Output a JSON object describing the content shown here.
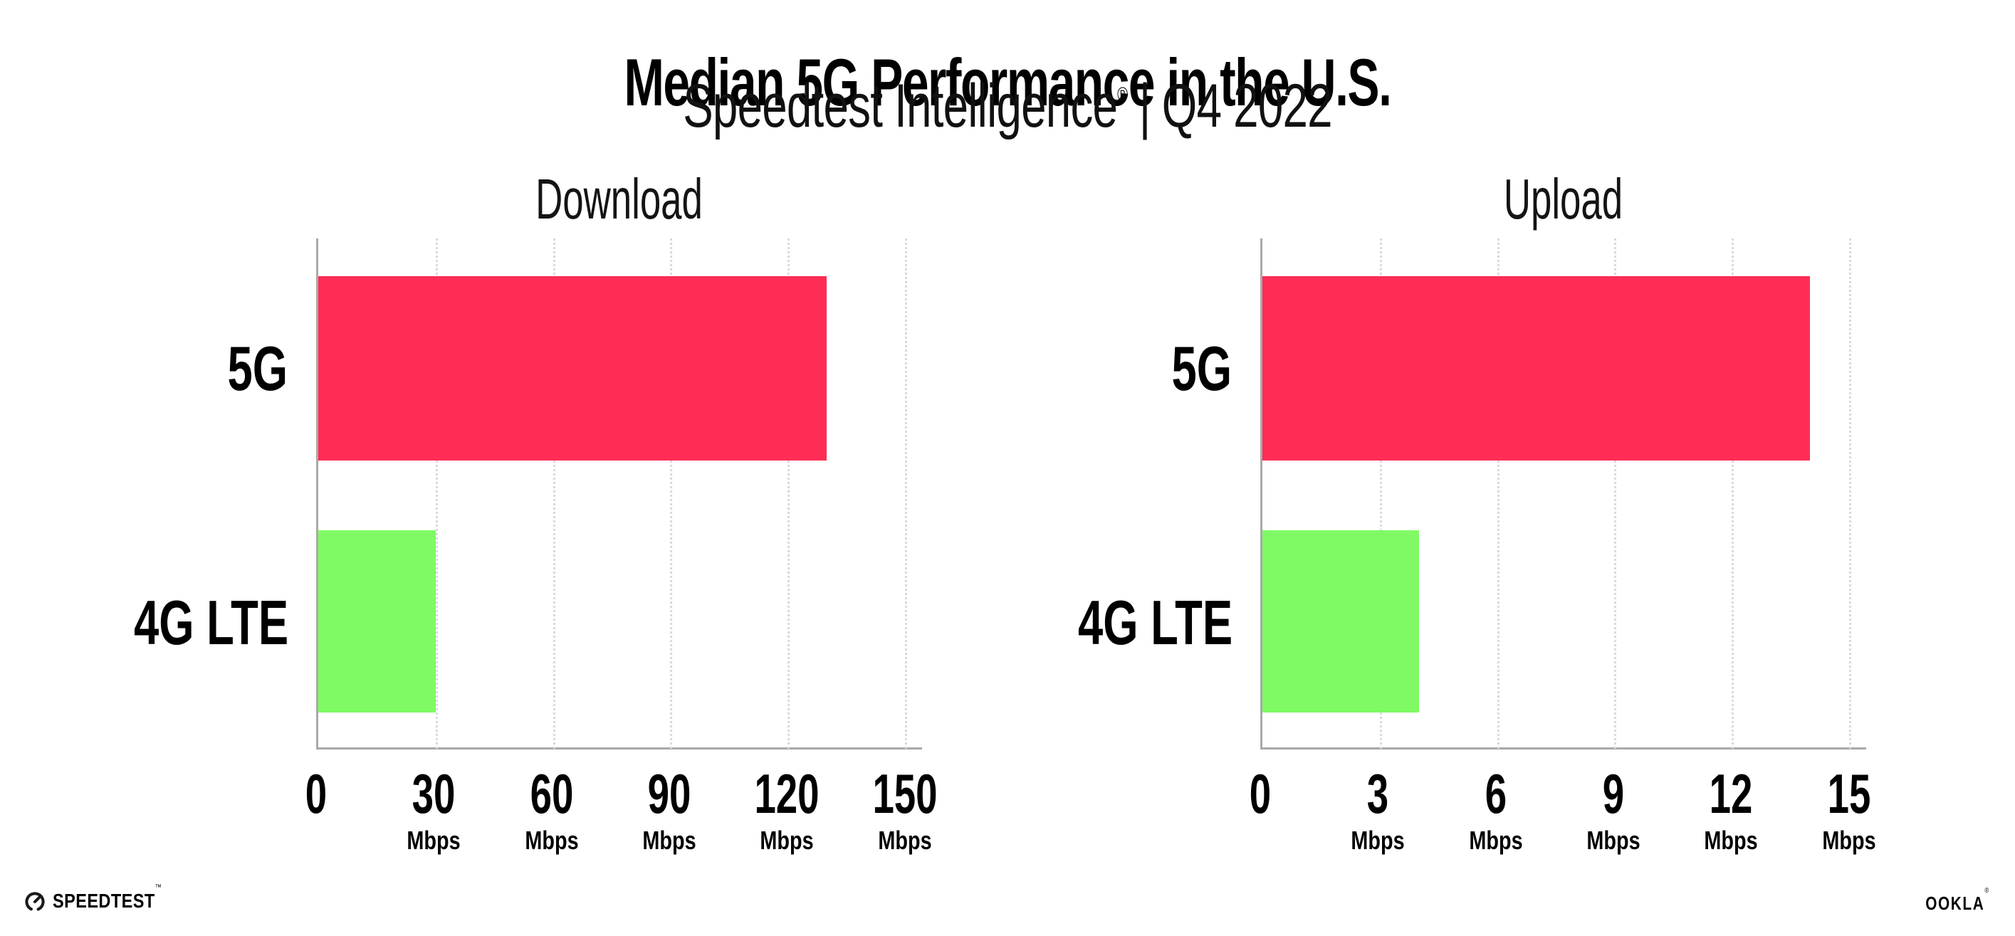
{
  "header": {
    "title": "Median 5G Performance in the U.S.",
    "subtitle": {
      "brand": "Speedtest Intelligence",
      "reg": "®",
      "separator": "|",
      "period": "Q4 2022"
    }
  },
  "colors": {
    "bar_5g": "#FF2D55",
    "bar_4g_lte": "#7FFA64",
    "axis": "#A9A9A9",
    "gridline": "#D9D9E2",
    "text": "#000000"
  },
  "chart_data": [
    {
      "type": "bar",
      "orientation": "horizontal",
      "title": "Download",
      "categories": [
        "5G",
        "4G LTE"
      ],
      "values": [
        130,
        30
      ],
      "unit": "Mbps",
      "xticks": [
        0,
        30,
        60,
        90,
        120,
        150
      ],
      "xlim": [
        0,
        154.4
      ],
      "xlabel": "",
      "ylabel": "",
      "grid": "dotted-vertical",
      "legend": "none"
    },
    {
      "type": "bar",
      "orientation": "horizontal",
      "title": "Upload",
      "categories": [
        "5G",
        "4G LTE"
      ],
      "values": [
        14,
        4
      ],
      "unit": "Mbps",
      "xticks": [
        0,
        3,
        6,
        9,
        12,
        15
      ],
      "xlim": [
        0,
        15.44
      ],
      "xlabel": "",
      "ylabel": "",
      "grid": "dotted-vertical",
      "legend": "none"
    }
  ],
  "footer": {
    "speedtest_label": "SPEEDTEST",
    "speedtest_tm": "™",
    "ookla_label": "OOKLA",
    "ookla_reg": "®"
  }
}
